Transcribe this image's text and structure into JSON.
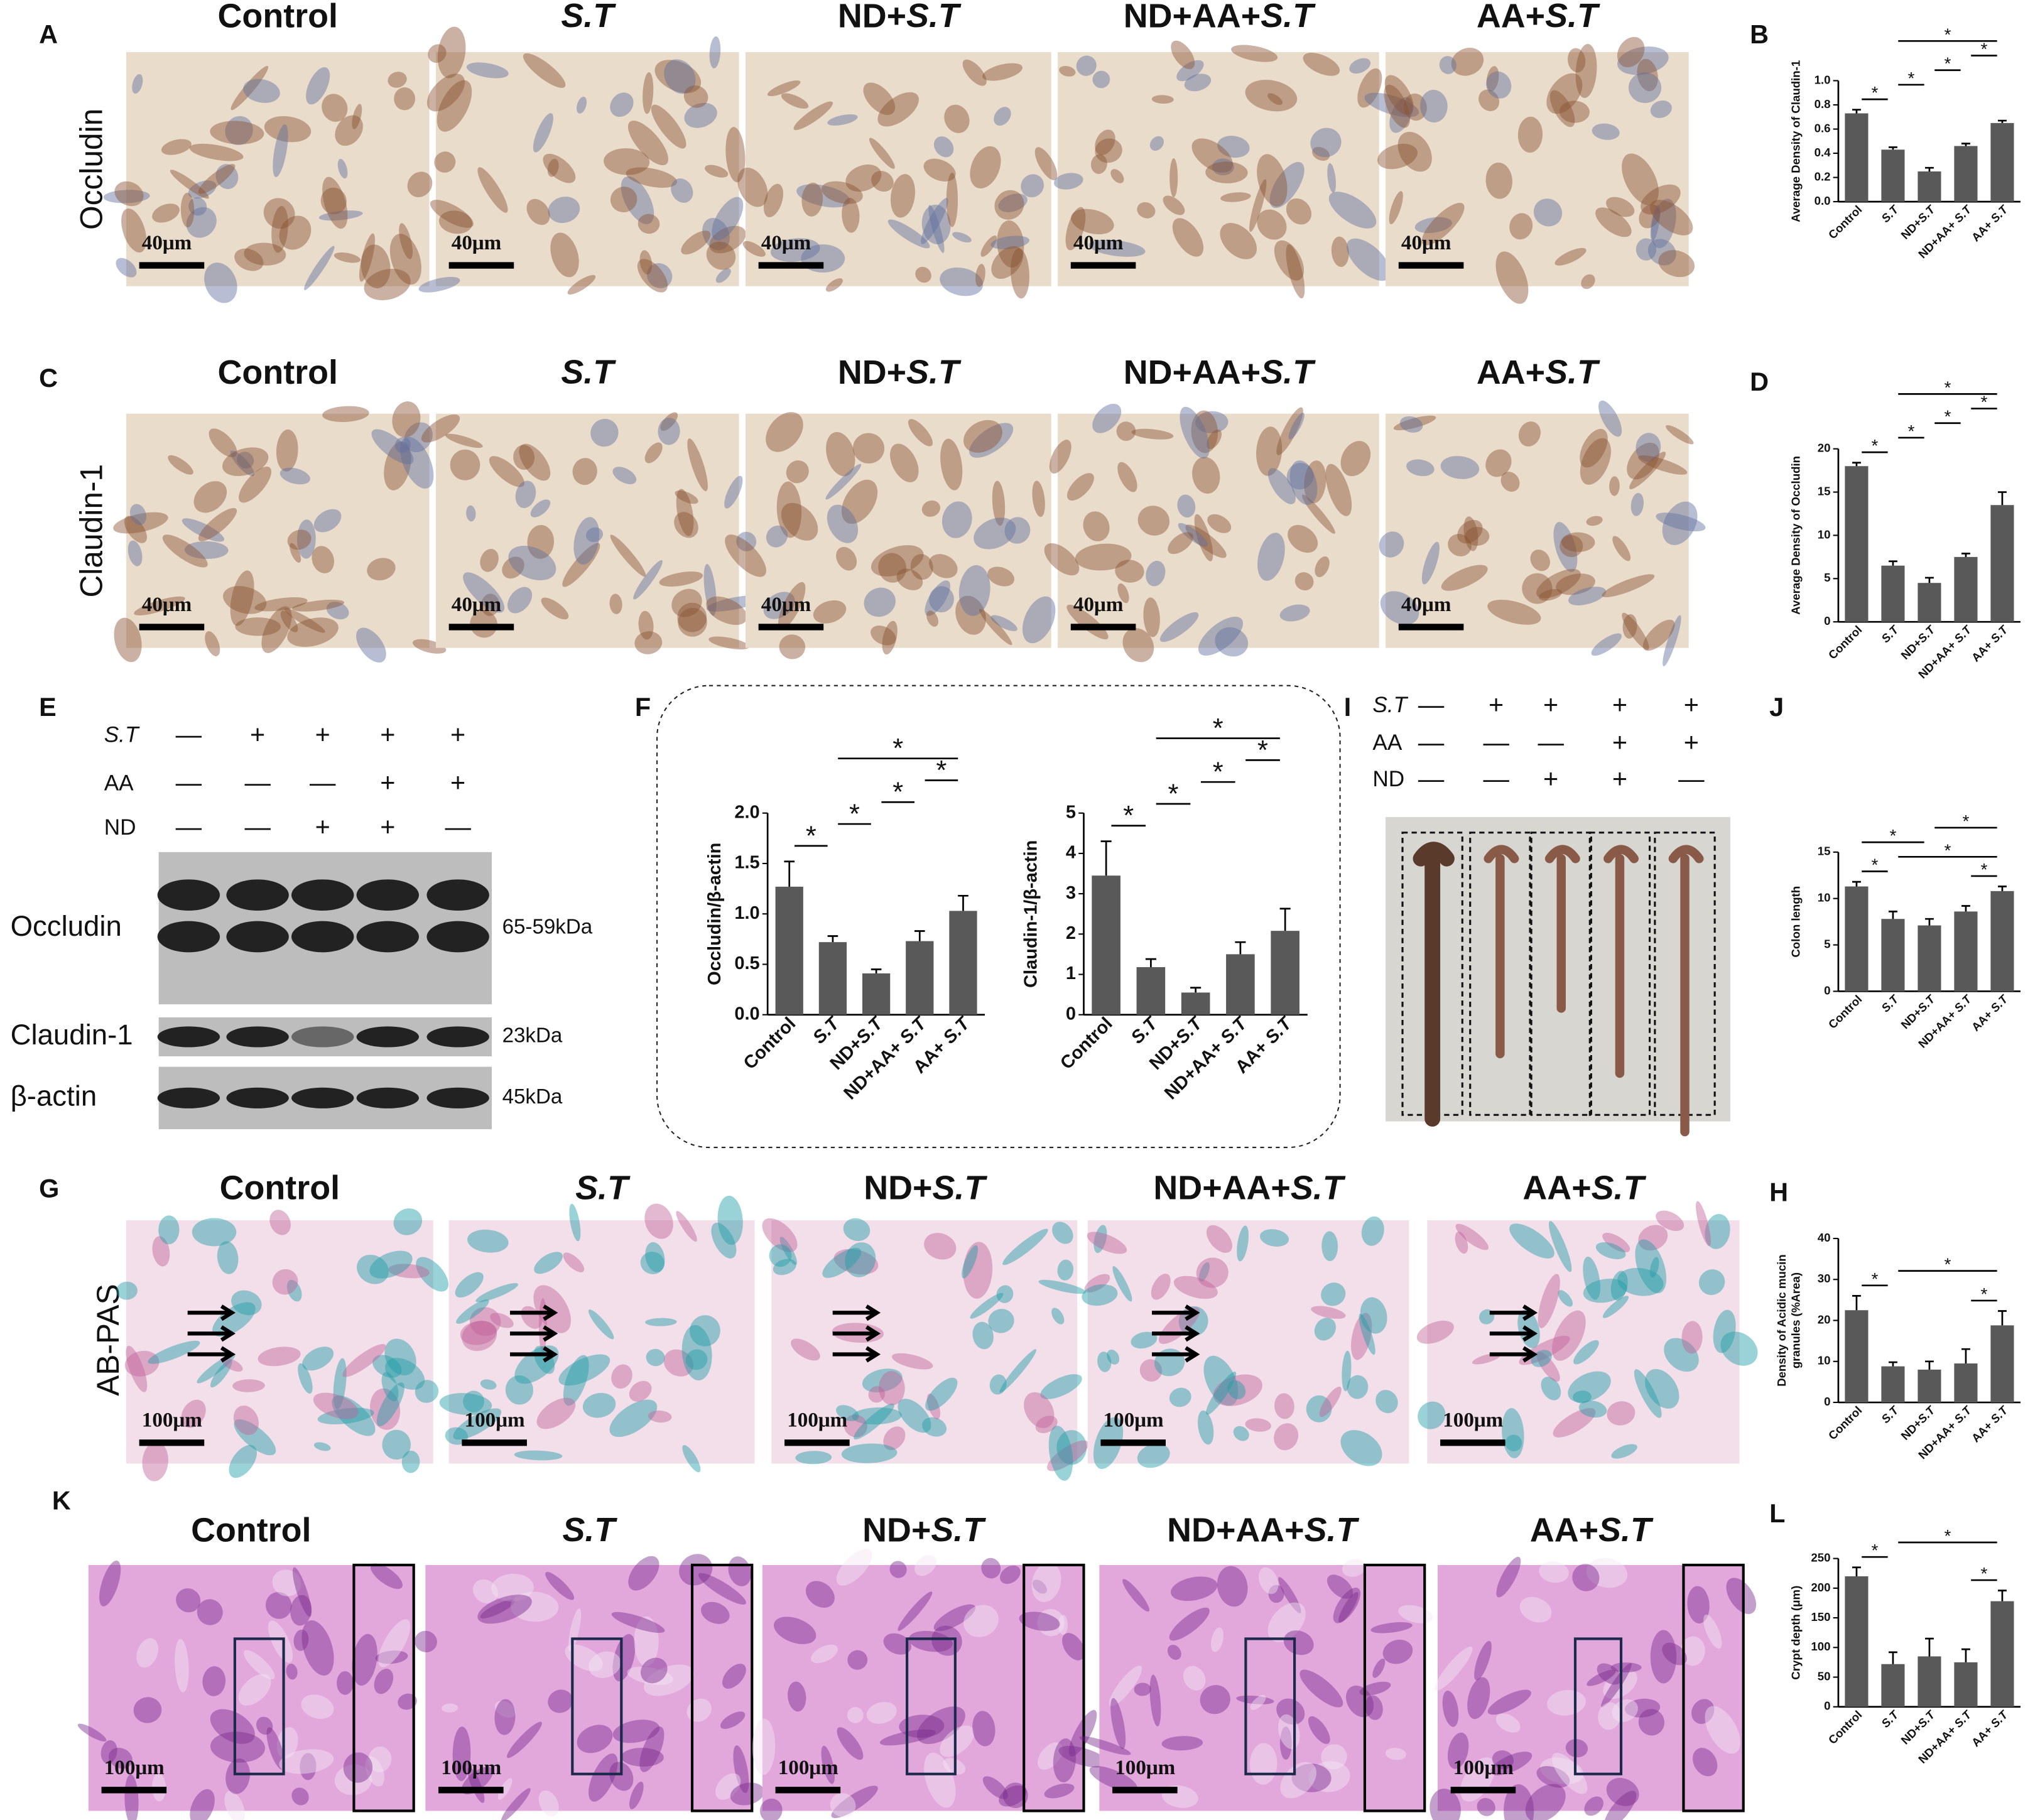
{
  "panel_labels": [
    "A",
    "B",
    "C",
    "D",
    "E",
    "F",
    "I",
    "J",
    "G",
    "H",
    "K",
    "L"
  ],
  "histology_rows": [
    {
      "label": "Occludin",
      "titles": [
        "Control",
        "S.T",
        "ND+S.T",
        "ND+AA+S.T",
        "AA+S.T"
      ],
      "scale_bar": "40μm"
    },
    {
      "label": "Claudin-1",
      "titles": [
        "Control",
        "S.T",
        "ND+S.T",
        "ND+AA+S.T",
        "AA+S.T"
      ],
      "scale_bar": "40μm"
    },
    {
      "label": "AB-PAS",
      "titles": [
        "Control",
        "S.T",
        "ND+S.T",
        "ND+AA+S.T",
        "AA+S.T"
      ],
      "scale_bar": "100μm"
    },
    {
      "titles": [
        "Control",
        "S.T",
        "ND+S.T",
        "ND+AA+S.T",
        "AA+S.T"
      ],
      "scale_bar": "100μm"
    }
  ],
  "western_blot": {
    "treatments": [
      {
        "name": "S.T",
        "signs": [
          "—",
          "+",
          "+",
          "+",
          "+"
        ]
      },
      {
        "name": "AA",
        "signs": [
          "—",
          "—",
          "—",
          "+",
          "+"
        ]
      },
      {
        "name": "ND",
        "signs": [
          "—",
          "—",
          "+",
          "+",
          "—"
        ]
      }
    ],
    "bands": [
      {
        "name": "Occludin",
        "size": "65-59kDa"
      },
      {
        "name": "Claudin-1",
        "size": "23kDa"
      },
      {
        "name": "β-actin",
        "size": "45kDa"
      }
    ]
  },
  "gross_colon": {
    "treatments": [
      {
        "name": "S.T",
        "signs": [
          "—",
          "+",
          "+",
          "+",
          "+"
        ]
      },
      {
        "name": "AA",
        "signs": [
          "—",
          "—",
          "—",
          "+",
          "+"
        ]
      },
      {
        "name": "ND",
        "signs": [
          "—",
          "—",
          "+",
          "+",
          "—"
        ]
      }
    ]
  },
  "chart_data": [
    {
      "type": "bar",
      "ylabel": "Average Density of Claudin-1",
      "color": "#595959",
      "categories": [
        "Control",
        "S.T",
        "ND+S.T",
        "ND+AA+ S.T",
        "AA+ S.T"
      ],
      "values": [
        0.73,
        0.43,
        0.25,
        0.46,
        0.65
      ],
      "errors": [
        0.03,
        0.02,
        0.03,
        0.02,
        0.02
      ],
      "ylim": [
        0,
        1
      ],
      "yticks": [
        {
          "value": 0,
          "label": "0.0"
        },
        0.2,
        0.4,
        0.6,
        0.8,
        {
          "value": 1,
          "label": "1.0"
        }
      ],
      "significance": [
        {
          "groups": [
            0,
            1
          ],
          "label": "*"
        },
        {
          "groups": [
            1,
            2
          ],
          "label": "*"
        },
        {
          "groups": [
            2,
            3
          ],
          "label": "*"
        },
        {
          "groups": [
            3,
            4
          ],
          "label": "*"
        },
        {
          "groups": [
            1,
            4
          ],
          "label": "*"
        }
      ]
    },
    {
      "type": "bar",
      "ylabel": "Average Density of Occludin",
      "color": "#595959",
      "categories": [
        "Control",
        "S.T",
        "ND+S.T",
        "ND+AA+ S.T",
        "AA+ S.T"
      ],
      "values": [
        18,
        6.5,
        4.5,
        7.5,
        13.5
      ],
      "errors": [
        0.4,
        0.5,
        0.6,
        0.4,
        1.5
      ],
      "ylim": [
        0,
        20
      ],
      "yticks": [
        0,
        5,
        10,
        15,
        20
      ],
      "significance": [
        {
          "groups": [
            0,
            1
          ],
          "label": "*"
        },
        {
          "groups": [
            1,
            2
          ],
          "label": "*"
        },
        {
          "groups": [
            2,
            3
          ],
          "label": "*"
        },
        {
          "groups": [
            3,
            4
          ],
          "label": "*"
        },
        {
          "groups": [
            1,
            4
          ],
          "label": "*"
        }
      ]
    },
    {
      "type": "bar",
      "ylabel": "Occludin/β-actin",
      "color": "#595959",
      "categories": [
        "Control",
        "S.T",
        "ND+S.T",
        "ND+AA+ S.T",
        "AA+ S.T"
      ],
      "values": [
        1.27,
        0.72,
        0.41,
        0.73,
        1.03
      ],
      "errors": [
        0.25,
        0.06,
        0.04,
        0.1,
        0.15
      ],
      "ylim": [
        0,
        2
      ],
      "yticks": [
        {
          "value": 0,
          "label": "0.0"
        },
        0.5,
        {
          "value": 1,
          "label": "1.0"
        },
        1.5,
        {
          "value": 2,
          "label": "2.0"
        }
      ],
      "significance": [
        {
          "groups": [
            0,
            1
          ],
          "label": "*"
        },
        {
          "groups": [
            1,
            2
          ],
          "label": "*"
        },
        {
          "groups": [
            2,
            3
          ],
          "label": "*"
        },
        {
          "groups": [
            3,
            4
          ],
          "label": "*"
        },
        {
          "groups": [
            1,
            4
          ],
          "label": "*"
        }
      ]
    },
    {
      "type": "bar",
      "ylabel": "Claudin-1/β-actin",
      "color": "#595959",
      "categories": [
        "Control",
        "S.T",
        "ND+S.T",
        "ND+AA+ S.T",
        "AA+ S.T"
      ],
      "values": [
        3.45,
        1.18,
        0.55,
        1.5,
        2.08
      ],
      "errors": [
        0.85,
        0.2,
        0.12,
        0.3,
        0.55
      ],
      "ylim": [
        0,
        5
      ],
      "yticks": [
        0,
        1,
        2,
        3,
        4,
        5
      ],
      "significance": [
        {
          "groups": [
            0,
            1
          ],
          "label": "*"
        },
        {
          "groups": [
            1,
            2
          ],
          "label": "*"
        },
        {
          "groups": [
            2,
            3
          ],
          "label": "*"
        },
        {
          "groups": [
            3,
            4
          ],
          "label": "*"
        },
        {
          "groups": [
            1,
            4
          ],
          "label": "*"
        }
      ]
    },
    {
      "type": "bar",
      "ylabel": "Colon length",
      "color": "#595959",
      "categories": [
        "Control",
        "S.T",
        "ND+S.T",
        "ND+AA+ S.T",
        "AA+ S.T"
      ],
      "values": [
        11.3,
        7.8,
        7.1,
        8.6,
        10.8
      ],
      "errors": [
        0.5,
        0.8,
        0.7,
        0.6,
        0.5
      ],
      "ylim": [
        0,
        15
      ],
      "yticks": [
        0,
        5,
        10,
        15
      ],
      "significance": [
        {
          "groups": [
            0,
            1
          ],
          "label": "*"
        },
        {
          "groups": [
            3,
            4
          ],
          "label": "*"
        },
        {
          "groups": [
            1,
            4
          ],
          "label": "*"
        },
        {
          "groups": [
            0,
            2
          ],
          "label": "*"
        },
        {
          "groups": [
            2,
            4
          ],
          "label": "*"
        }
      ]
    },
    {
      "type": "bar",
      "ylabel": [
        "Density of Acidic mucin",
        "granules (%Area)"
      ],
      "color": "#595959",
      "categories": [
        "Control",
        "S.T",
        "ND+S.T",
        "ND+AA+ S.T",
        "AA+ S.T"
      ],
      "values": [
        22.5,
        8.8,
        8,
        9.5,
        18.8
      ],
      "errors": [
        3.5,
        1,
        2,
        3.5,
        3.5
      ],
      "ylim": [
        0,
        40
      ],
      "yticks": [
        0,
        10,
        20,
        30,
        40
      ],
      "significance": [
        {
          "groups": [
            0,
            1
          ],
          "label": "*"
        },
        {
          "groups": [
            3,
            4
          ],
          "label": "*"
        },
        {
          "groups": [
            1,
            4
          ],
          "label": "*"
        }
      ]
    },
    {
      "type": "bar",
      "ylabel": "Crypt depth (μm)",
      "color": "#595959",
      "categories": [
        "Control",
        "S.T",
        "ND+S.T",
        "ND+AA+ S.T",
        "AA+ S.T"
      ],
      "values": [
        220,
        72,
        85,
        75,
        178
      ],
      "errors": [
        15,
        20,
        30,
        22,
        18
      ],
      "ylim": [
        0,
        250
      ],
      "yticks": [
        0,
        50,
        100,
        150,
        200,
        250
      ],
      "significance": [
        {
          "groups": [
            0,
            1
          ],
          "label": "*"
        },
        {
          "groups": [
            3,
            4
          ],
          "label": "*"
        },
        {
          "groups": [
            1,
            4
          ],
          "label": "*"
        }
      ]
    }
  ]
}
